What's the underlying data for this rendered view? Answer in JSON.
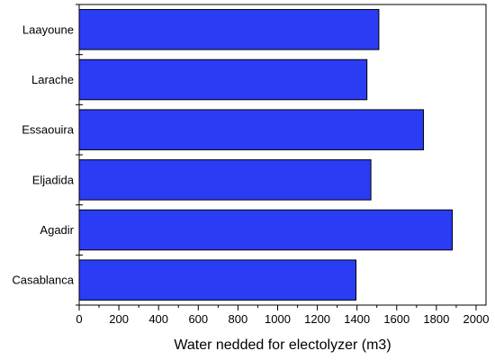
{
  "chart_data": {
    "type": "bar",
    "orientation": "horizontal",
    "categories": [
      "Laayoune",
      "Larache",
      "Essaouira",
      "Eljadida",
      "Agadir",
      "Casablanca"
    ],
    "values": [
      1510,
      1450,
      1735,
      1470,
      1880,
      1395
    ],
    "xlabel": "Water nedded for electolyzer (m3)",
    "ylabel": "",
    "xlim": [
      0,
      2050
    ],
    "xticks": [
      0,
      200,
      400,
      600,
      800,
      1000,
      1200,
      1400,
      1600,
      1800,
      2000
    ],
    "grid": false,
    "bar_color": "#2b3cf5",
    "bar_edge_color": "#000000"
  }
}
